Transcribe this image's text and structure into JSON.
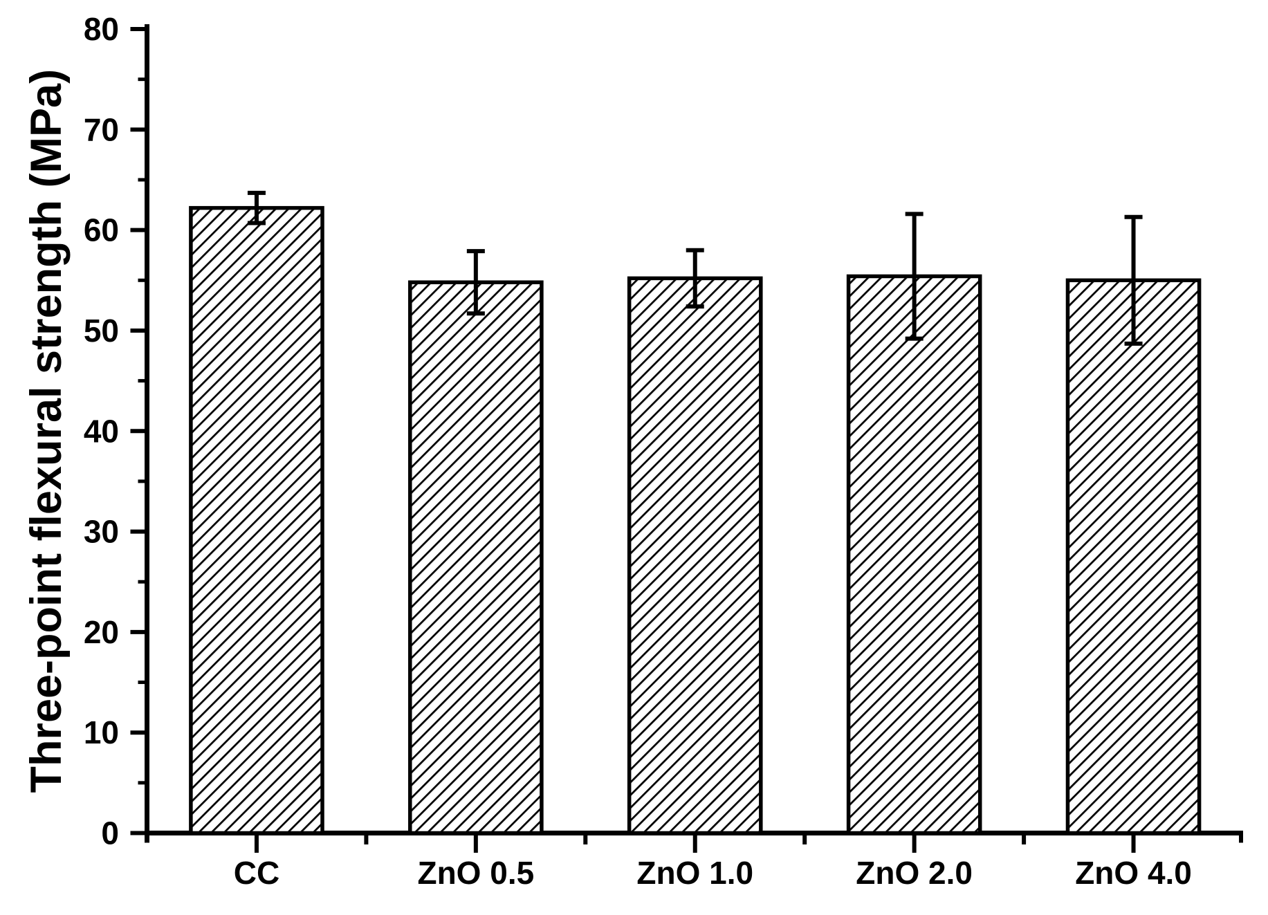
{
  "figure": {
    "background_color": "#ffffff",
    "ink_color": "#000000"
  },
  "chart_data": {
    "type": "bar",
    "title": "",
    "xlabel": "",
    "ylabel": "Three-point flexural strength (MPa)",
    "categories": [
      "CC",
      "ZnO 0.5",
      "ZnO 1.0",
      "ZnO 2.0",
      "ZnO 4.0"
    ],
    "values": [
      62.2,
      54.8,
      55.2,
      55.4,
      55.0
    ],
    "error_bars": [
      1.5,
      3.1,
      2.8,
      6.2,
      6.3
    ],
    "ylim": [
      0,
      80
    ],
    "ytick_labels": [
      "0",
      "10",
      "20",
      "30",
      "40",
      "50",
      "60",
      "70",
      "80"
    ],
    "ytick_step": 10,
    "yminor_step": 5,
    "grid": false,
    "legend": null,
    "bar_style": {
      "fill": "#ffffff",
      "hatch": "diagonal-forward",
      "edge_color": "#000000",
      "error_color": "#000000"
    }
  }
}
